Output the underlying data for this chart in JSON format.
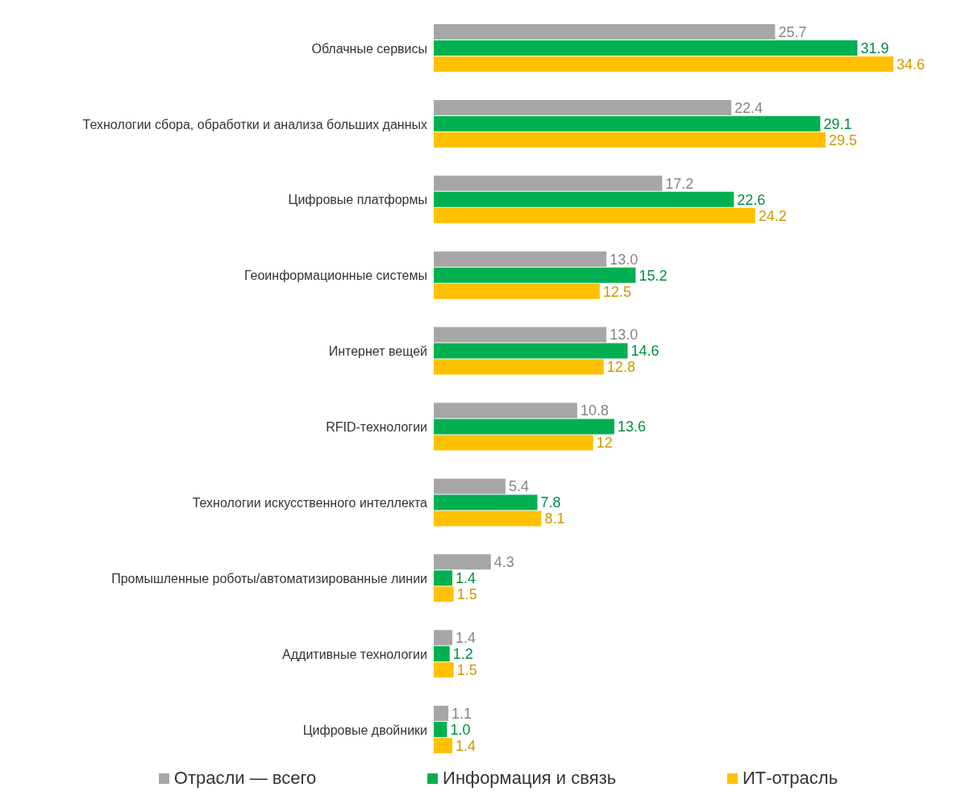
{
  "chart_data": {
    "type": "bar",
    "orientation": "horizontal",
    "categories": [
      "Облачные сервисы",
      "Технологии сбора, обработки и анализа больших данных",
      "Цифровые платформы",
      "Геоинформационные системы",
      "Интернет вещей",
      "RFID-технологии",
      "Технологии искусственного интеллекта",
      "Промышленные роботы/автоматизированные линии",
      "Аддитивные технологии",
      "Цифровые двойники"
    ],
    "series": [
      {
        "name": "Отрасли — всего",
        "color": "#a6a6a6",
        "values": [
          25.7,
          22.4,
          17.2,
          13.0,
          13.0,
          10.8,
          5.4,
          4.3,
          1.4,
          1.1
        ],
        "value_labels": [
          "25.7",
          "22.4",
          "17.2",
          "13.0",
          "13.0",
          "10.8",
          "5.4",
          "4.3",
          "1.4",
          "1.1"
        ]
      },
      {
        "name": "Информация и связь",
        "color": "#00b050",
        "values": [
          31.9,
          29.1,
          22.6,
          15.2,
          14.6,
          13.6,
          7.8,
          1.4,
          1.2,
          1.0
        ],
        "value_labels": [
          "31.9",
          "29.1",
          "22.6",
          "15.2",
          "14.6",
          "13.6",
          "7.8",
          "1.4",
          "1.2",
          "1.0"
        ]
      },
      {
        "name": "ИТ-отрасль",
        "color": "#ffc000",
        "values": [
          34.6,
          29.5,
          24.2,
          12.5,
          12.8,
          12,
          8.1,
          1.5,
          1.5,
          1.4
        ],
        "value_labels": [
          "34.6",
          "29.5",
          "24.2",
          "12.5",
          "12.8",
          "12",
          "8.1",
          "1.5",
          "1.5",
          "1.4"
        ]
      }
    ],
    "legend": "bottom",
    "grid": false
  }
}
